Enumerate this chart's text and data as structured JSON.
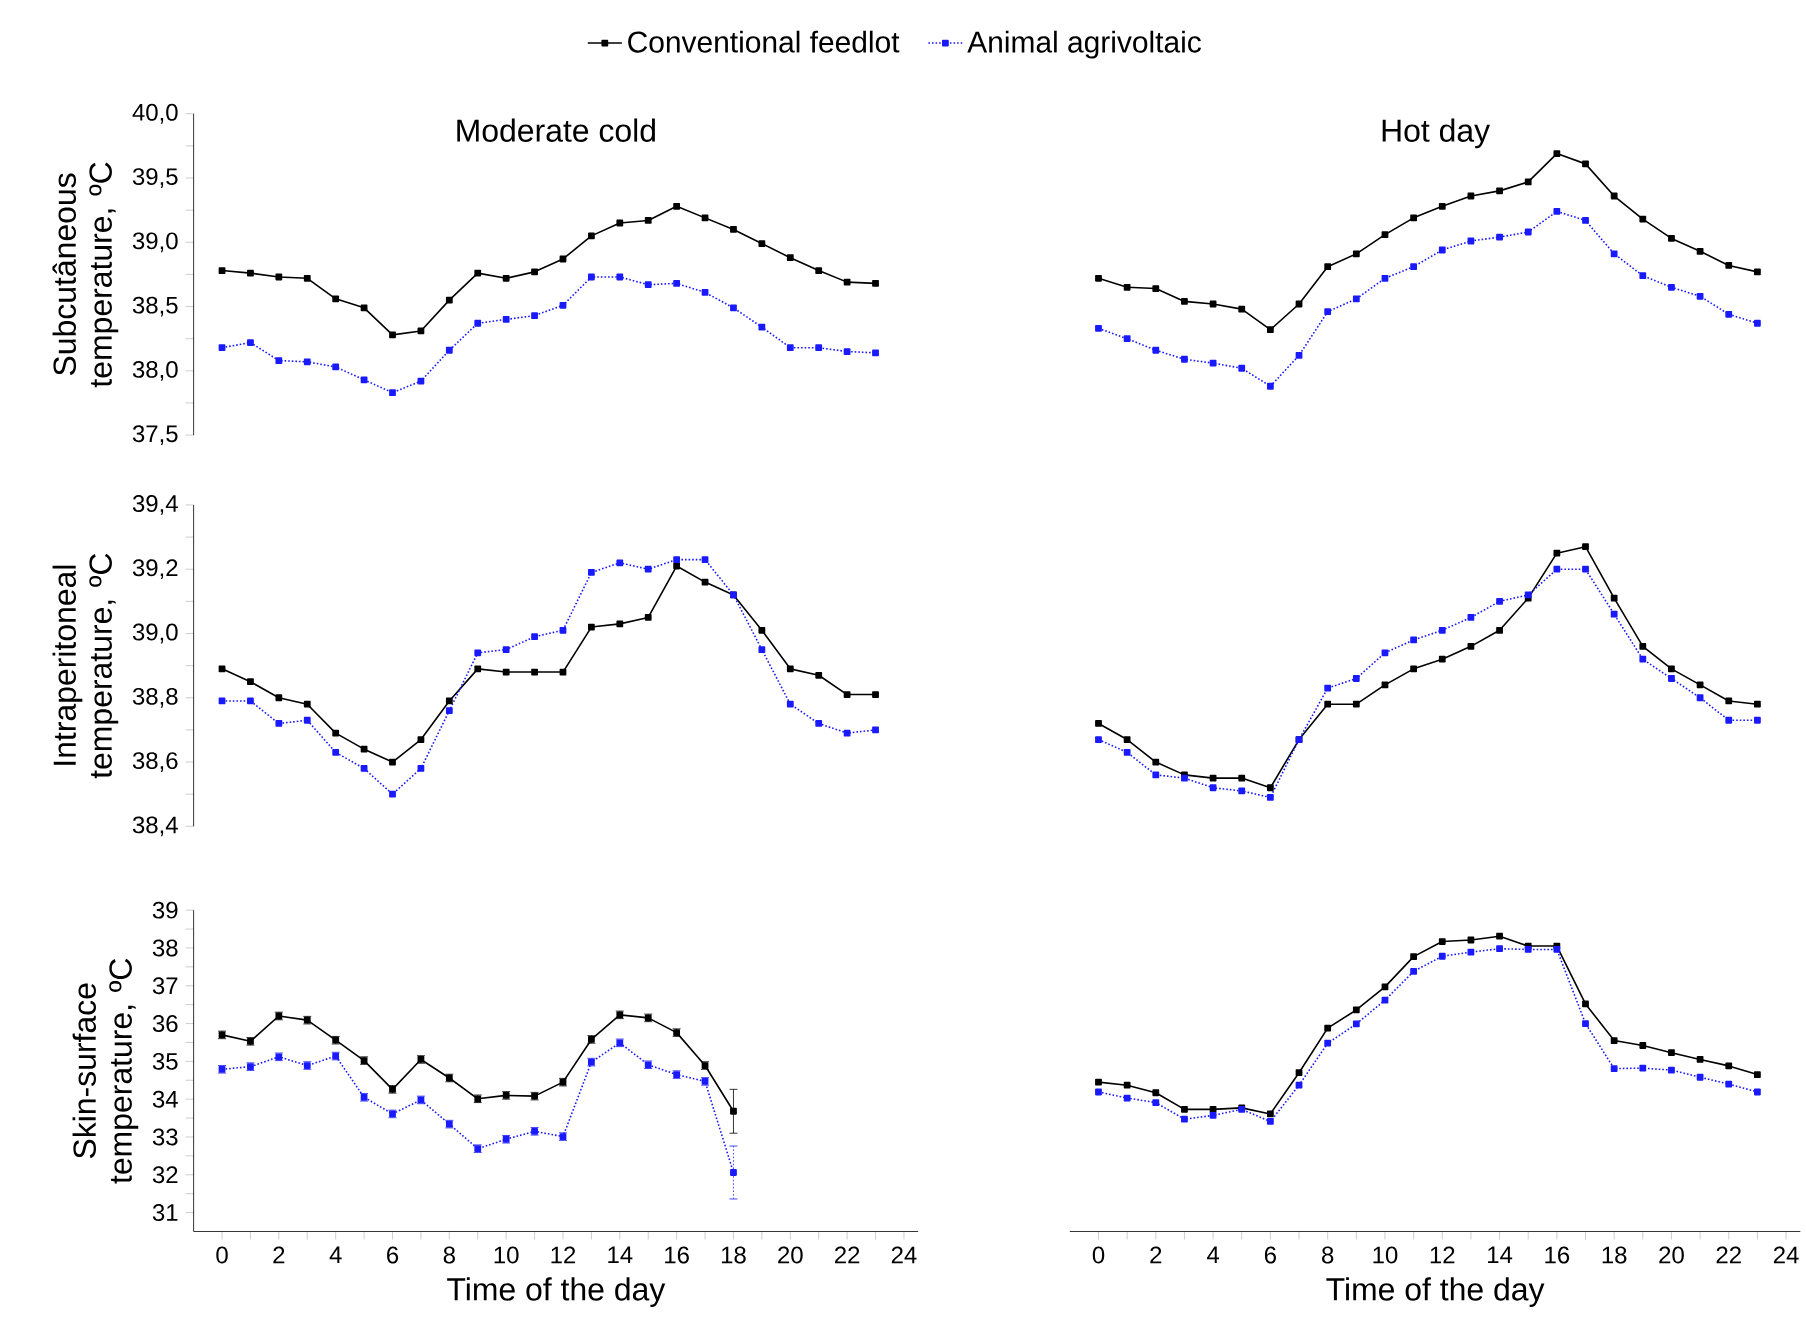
{
  "chart_data": [
    {
      "type": "line",
      "title": "Moderate cold",
      "ylabel": "Subcutâneous temperature, ºC",
      "legend": "top",
      "marker": "square",
      "tick_labels": "y",
      "ylim": [
        37.5,
        40.0
      ],
      "yticks": [
        {
          "value": 37.5,
          "label": "37,5"
        },
        {
          "value": 37.75,
          "label": null
        },
        {
          "value": 38.0,
          "label": "38,0"
        },
        {
          "value": 38.25,
          "label": null
        },
        {
          "value": 38.5,
          "label": "38,5"
        },
        {
          "value": 38.75,
          "label": null
        },
        {
          "value": 39.0,
          "label": "39,0"
        },
        {
          "value": 39.25,
          "label": null
        },
        {
          "value": 39.5,
          "label": "39,5"
        },
        {
          "value": 39.75,
          "label": null
        },
        {
          "value": 40.0,
          "label": "40,0"
        }
      ],
      "x": [
        0,
        1,
        2,
        3,
        4,
        5,
        6,
        7,
        8,
        9,
        10,
        11,
        12,
        13,
        14,
        15,
        16,
        17,
        18,
        19,
        20,
        21,
        22,
        23
      ],
      "series": [
        {
          "name": "Conventional feedlot",
          "color": "#000000",
          "line_style": "solid",
          "values": [
            38.78,
            38.76,
            38.73,
            38.72,
            38.56,
            38.49,
            38.28,
            38.31,
            38.55,
            38.76,
            38.72,
            38.77,
            38.87,
            39.05,
            39.15,
            39.17,
            39.28,
            39.19,
            39.1,
            38.99,
            38.88,
            38.78,
            38.69,
            38.68
          ]
        },
        {
          "name": "Animal agrivoltaic",
          "color": "#1a1aff",
          "line_style": "dotted",
          "values": [
            38.18,
            38.22,
            38.08,
            38.07,
            38.03,
            37.93,
            37.83,
            37.92,
            38.16,
            38.37,
            38.4,
            38.43,
            38.51,
            38.73,
            38.73,
            38.67,
            38.68,
            38.61,
            38.49,
            38.34,
            38.18,
            38.18,
            38.15,
            38.14
          ]
        }
      ]
    },
    {
      "type": "line",
      "title": "Hot day",
      "marker": "square",
      "tick_labels": false,
      "ylim": [
        37.5,
        40.0
      ],
      "x": [
        0,
        1,
        2,
        3,
        4,
        5,
        6,
        7,
        8,
        9,
        10,
        11,
        12,
        13,
        14,
        15,
        16,
        17,
        18,
        19,
        20,
        21,
        22,
        23
      ],
      "series": [
        {
          "color": "#000000",
          "line_style": "solid",
          "values": [
            38.72,
            38.65,
            38.64,
            38.54,
            38.52,
            38.48,
            38.32,
            38.52,
            38.81,
            38.91,
            39.06,
            39.19,
            39.28,
            39.36,
            39.4,
            39.47,
            39.69,
            39.61,
            39.36,
            39.18,
            39.03,
            38.93,
            38.82,
            38.77
          ]
        },
        {
          "color": "#1a1aff",
          "line_style": "dotted",
          "values": [
            38.33,
            38.25,
            38.16,
            38.09,
            38.06,
            38.02,
            37.88,
            38.12,
            38.46,
            38.56,
            38.72,
            38.81,
            38.94,
            39.01,
            39.04,
            39.08,
            39.24,
            39.17,
            38.91,
            38.74,
            38.65,
            38.58,
            38.44,
            38.37
          ]
        }
      ]
    },
    {
      "type": "line",
      "ylabel": "Intraperitoneal temperature, ºC",
      "marker": "square",
      "tick_labels": "y",
      "ylim": [
        38.4,
        39.4
      ],
      "yticks": [
        {
          "value": 38.4,
          "label": "38,4"
        },
        {
          "value": 38.5,
          "label": null
        },
        {
          "value": 38.6,
          "label": "38,6"
        },
        {
          "value": 38.7,
          "label": null
        },
        {
          "value": 38.8,
          "label": "38,8"
        },
        {
          "value": 38.9,
          "label": null
        },
        {
          "value": 39.0,
          "label": "39,0"
        },
        {
          "value": 39.1,
          "label": null
        },
        {
          "value": 39.2,
          "label": "39,2"
        },
        {
          "value": 39.3,
          "label": null
        },
        {
          "value": 39.4,
          "label": "39,4"
        }
      ],
      "x": [
        0,
        1,
        2,
        3,
        4,
        5,
        6,
        7,
        8,
        9,
        10,
        11,
        12,
        13,
        14,
        15,
        16,
        17,
        18,
        19,
        20,
        21,
        22,
        23
      ],
      "series": [
        {
          "color": "#000000",
          "line_style": "solid",
          "values": [
            38.89,
            38.85,
            38.8,
            38.78,
            38.69,
            38.64,
            38.6,
            38.67,
            38.79,
            38.89,
            38.88,
            38.88,
            38.88,
            39.02,
            39.03,
            39.05,
            39.21,
            39.16,
            39.12,
            39.01,
            38.89,
            38.87,
            38.81,
            38.81
          ]
        },
        {
          "color": "#1a1aff",
          "line_style": "dotted",
          "values": [
            38.79,
            38.79,
            38.72,
            38.73,
            38.63,
            38.58,
            38.5,
            38.58,
            38.76,
            38.94,
            38.95,
            38.99,
            39.01,
            39.19,
            39.22,
            39.2,
            39.23,
            39.23,
            39.12,
            38.95,
            38.78,
            38.72,
            38.69,
            38.7
          ]
        }
      ]
    },
    {
      "type": "line",
      "marker": "square",
      "tick_labels": false,
      "ylim": [
        38.4,
        39.4
      ],
      "x": [
        0,
        1,
        2,
        3,
        4,
        5,
        6,
        7,
        8,
        9,
        10,
        11,
        12,
        13,
        14,
        15,
        16,
        17,
        18,
        19,
        20,
        21,
        22,
        23
      ],
      "series": [
        {
          "color": "#000000",
          "line_style": "solid",
          "values": [
            38.72,
            38.67,
            38.6,
            38.56,
            38.55,
            38.55,
            38.52,
            38.67,
            38.78,
            38.78,
            38.84,
            38.89,
            38.92,
            38.96,
            39.01,
            39.11,
            39.25,
            39.27,
            39.11,
            38.96,
            38.89,
            38.84,
            38.79,
            38.78
          ]
        },
        {
          "color": "#1a1aff",
          "line_style": "dotted",
          "values": [
            38.67,
            38.63,
            38.56,
            38.55,
            38.52,
            38.51,
            38.49,
            38.67,
            38.83,
            38.86,
            38.94,
            38.98,
            39.01,
            39.05,
            39.1,
            39.12,
            39.2,
            39.2,
            39.06,
            38.92,
            38.86,
            38.8,
            38.73,
            38.73
          ]
        }
      ]
    },
    {
      "type": "line",
      "xlabel": "Time of the day",
      "ylabel": "Skin-surface temperature, ºC",
      "marker": "square",
      "xlim": [
        -1,
        24.5
      ],
      "ylim": [
        30.5,
        39
      ],
      "xticks": [
        0,
        {
          "value": 1,
          "label": null
        },
        2,
        {
          "value": 3,
          "label": null
        },
        4,
        {
          "value": 5,
          "label": null
        },
        6,
        {
          "value": 7,
          "label": null
        },
        8,
        {
          "value": 9,
          "label": null
        },
        10,
        {
          "value": 11,
          "label": null
        },
        12,
        {
          "value": 13,
          "label": null
        },
        14,
        {
          "value": 15,
          "label": null
        },
        16,
        {
          "value": 17,
          "label": null
        },
        18,
        {
          "value": 19,
          "label": null
        },
        20,
        {
          "value": 21,
          "label": null
        },
        22,
        {
          "value": 23,
          "label": null
        },
        24
      ],
      "yticks": [
        31,
        {
          "value": 31.5,
          "label": null
        },
        32,
        {
          "value": 32.5,
          "label": null
        },
        33,
        {
          "value": 33.5,
          "label": null
        },
        34,
        {
          "value": 34.5,
          "label": null
        },
        35,
        {
          "value": 35.5,
          "label": null
        },
        36,
        {
          "value": 36.5,
          "label": null
        },
        37,
        {
          "value": 37.5,
          "label": null
        },
        38,
        {
          "value": 38.5,
          "label": null
        },
        39
      ],
      "x": [
        0,
        1,
        2,
        3,
        4,
        5,
        6,
        7,
        8,
        9,
        10,
        11,
        12,
        13,
        14,
        15,
        16,
        17,
        18
      ],
      "series": [
        {
          "color": "#000000",
          "line_style": "solid",
          "values": [
            35.7,
            35.53,
            36.2,
            36.09,
            35.56,
            35.02,
            34.26,
            35.05,
            34.56,
            34.01,
            34.1,
            34.08,
            34.45,
            35.58,
            36.23,
            36.15,
            35.76,
            34.89,
            33.68
          ],
          "errors": [
            0.1,
            0.1,
            0.1,
            0.1,
            0.1,
            0.1,
            0.1,
            0.1,
            0.1,
            0.1,
            0.1,
            0.1,
            0.1,
            0.1,
            0.1,
            0.1,
            0.1,
            0.1,
            0.58
          ]
        },
        {
          "color": "#1a1aff",
          "line_style": "dotted",
          "values": [
            34.79,
            34.86,
            35.12,
            34.89,
            35.14,
            34.05,
            33.61,
            33.98,
            33.34,
            32.69,
            32.94,
            33.15,
            33.01,
            34.98,
            35.49,
            34.91,
            34.65,
            34.47,
            32.06
          ],
          "errors": [
            0.1,
            0.1,
            0.1,
            0.1,
            0.1,
            0.1,
            0.1,
            0.1,
            0.1,
            0.1,
            0.1,
            0.1,
            0.1,
            0.1,
            0.1,
            0.1,
            0.1,
            0.1,
            0.7
          ]
        }
      ]
    },
    {
      "type": "line",
      "xlabel": "Time of the day",
      "marker": "square",
      "tick_labels": "x",
      "xlim": [
        -1,
        24.5
      ],
      "ylim": [
        30.5,
        39
      ],
      "xticks": [
        0,
        {
          "value": 1,
          "label": null
        },
        2,
        {
          "value": 3,
          "label": null
        },
        4,
        {
          "value": 5,
          "label": null
        },
        6,
        {
          "value": 7,
          "label": null
        },
        8,
        {
          "value": 9,
          "label": null
        },
        10,
        {
          "value": 11,
          "label": null
        },
        12,
        {
          "value": 13,
          "label": null
        },
        14,
        {
          "value": 15,
          "label": null
        },
        16,
        {
          "value": 17,
          "label": null
        },
        18,
        {
          "value": 19,
          "label": null
        },
        20,
        {
          "value": 21,
          "label": null
        },
        22,
        {
          "value": 23,
          "label": null
        },
        24
      ],
      "x": [
        0,
        1,
        2,
        3,
        4,
        5,
        6,
        7,
        8,
        9,
        10,
        11,
        12,
        13,
        14,
        15,
        16,
        17,
        18,
        19,
        20,
        21,
        22,
        23
      ],
      "series": [
        {
          "color": "#000000",
          "line_style": "solid",
          "values": [
            34.45,
            34.37,
            34.17,
            33.73,
            33.73,
            33.77,
            33.61,
            34.7,
            35.88,
            36.36,
            36.97,
            37.77,
            38.17,
            38.21,
            38.31,
            38.05,
            38.05,
            36.52,
            35.55,
            35.42,
            35.23,
            35.05,
            34.88,
            34.65
          ]
        },
        {
          "color": "#1a1aff",
          "line_style": "dotted",
          "values": [
            34.19,
            34.03,
            33.91,
            33.47,
            33.57,
            33.73,
            33.41,
            34.37,
            35.48,
            35.99,
            36.62,
            37.38,
            37.78,
            37.89,
            37.98,
            37.96,
            37.96,
            36.0,
            34.81,
            34.82,
            34.77,
            34.58,
            34.4,
            34.19
          ]
        }
      ]
    }
  ]
}
